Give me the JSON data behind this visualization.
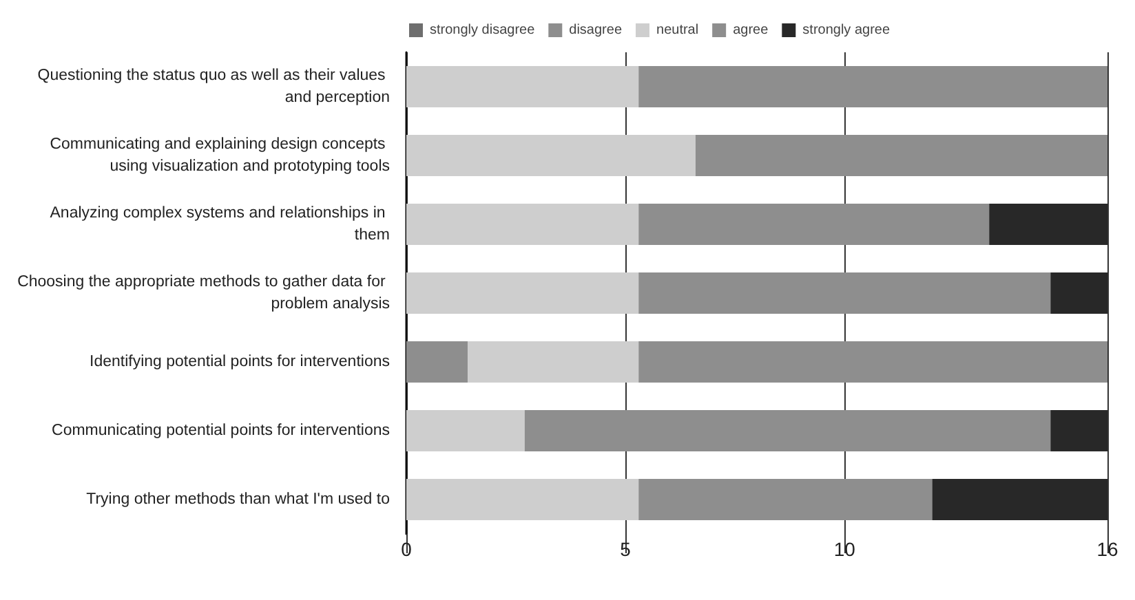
{
  "chart_data": {
    "type": "bar",
    "orientation": "horizontal",
    "stacked": true,
    "legend": "top",
    "grid": "x",
    "categories": [
      "Questioning the status quo as well as their values and perception",
      "Communicating and explaining design concepts using visualization and prototyping tools",
      "Analyzing complex systems and relationships in them",
      "Choosing the appropriate methods to gather data for problem analysis",
      "Identifying potential points for interventions",
      "Communicating potential points for interventions",
      "Trying other methods than what I'm used to"
    ],
    "xlim": [
      0,
      16
    ],
    "xticks": [
      0,
      5,
      10,
      16
    ],
    "series": [
      {
        "name": "strongly disagree",
        "color": "#6e6e6e",
        "values": [
          0,
          0,
          0,
          0,
          0,
          0,
          0
        ]
      },
      {
        "name": "disagree",
        "color": "#8e8e8e",
        "values": [
          0,
          0,
          0,
          0,
          1.4,
          0,
          0
        ]
      },
      {
        "name": "neutral",
        "color": "#cecece",
        "values": [
          5.3,
          6.6,
          5.3,
          5.3,
          3.9,
          2.7,
          5.3
        ]
      },
      {
        "name": "agree",
        "color": "#8e8e8e",
        "values": [
          10.7,
          9.4,
          8.0,
          9.4,
          10.7,
          12.0,
          6.7
        ]
      },
      {
        "name": "strongly agree",
        "color": "#282828",
        "values": [
          0,
          0,
          2.7,
          1.3,
          0,
          1.3,
          4.0
        ]
      }
    ]
  }
}
